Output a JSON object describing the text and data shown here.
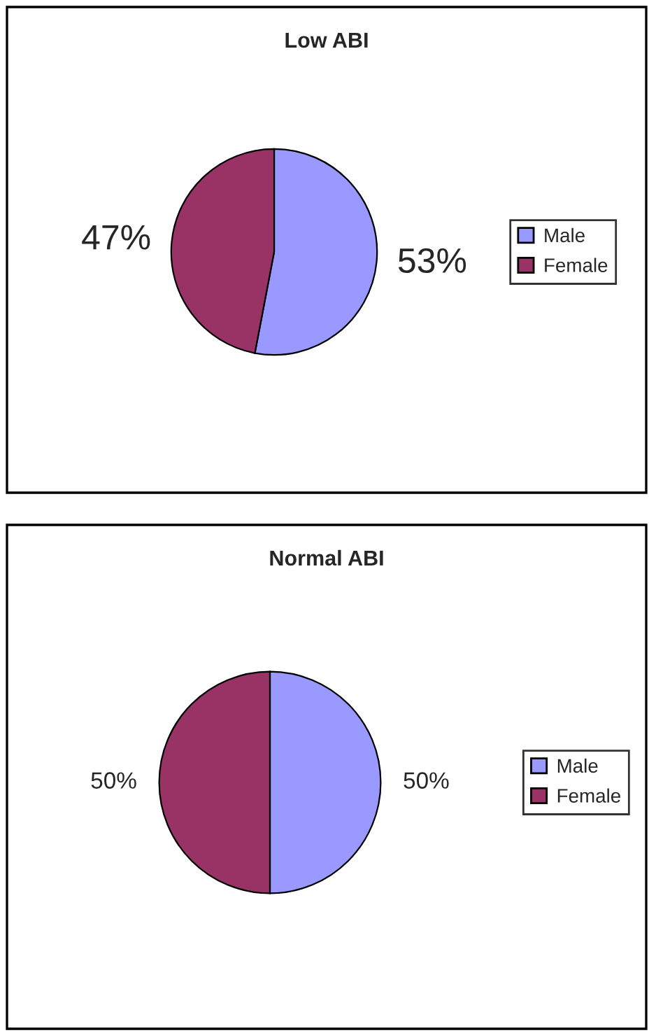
{
  "chart_data": [
    {
      "type": "pie",
      "title": "Low ABI",
      "categories": [
        "Male",
        "Female"
      ],
      "values": [
        53,
        47
      ],
      "colors": [
        "#9999ff",
        "#993366"
      ],
      "value_labels": [
        "53%",
        "47%"
      ],
      "legend": "right"
    },
    {
      "type": "pie",
      "title": "Normal ABI",
      "categories": [
        "Male",
        "Female"
      ],
      "values": [
        50,
        50
      ],
      "colors": [
        "#9999ff",
        "#993366"
      ],
      "value_labels": [
        "50%",
        "50%"
      ],
      "legend": "right"
    }
  ]
}
